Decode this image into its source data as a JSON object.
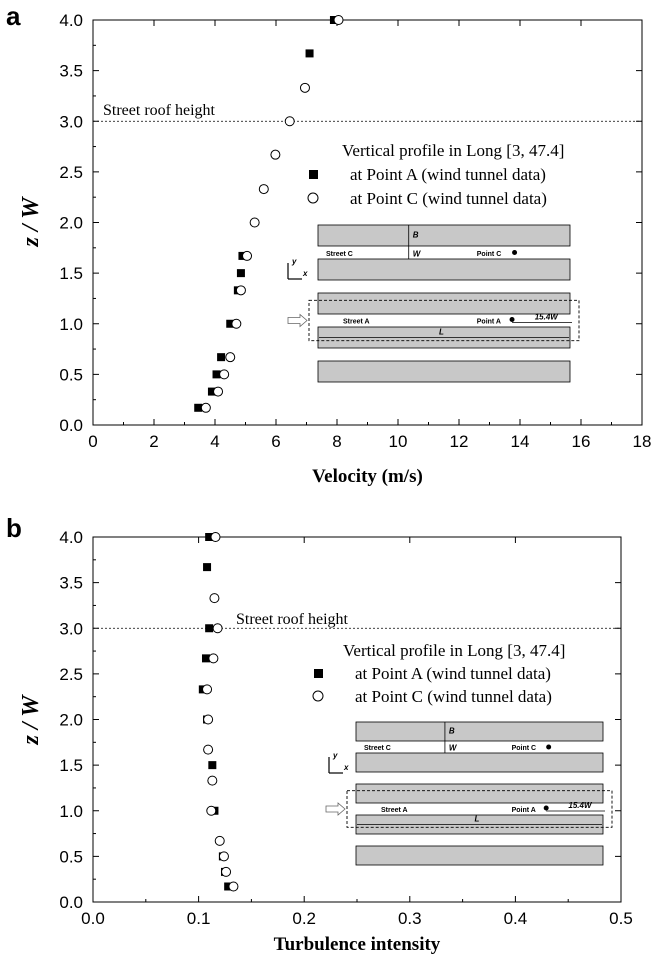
{
  "chart_data": [
    {
      "panel": "a",
      "type": "scatter",
      "xlabel": "Velocity (m/s)",
      "ylabel": "z / W",
      "xlim": [
        0,
        18
      ],
      "ylim": [
        0,
        4.0
      ],
      "xticks": [
        "0",
        "2",
        "4",
        "6",
        "8",
        "10",
        "12",
        "14",
        "16",
        "18"
      ],
      "yticks": [
        "0.0",
        "0.5",
        "1.0",
        "1.5",
        "2.0",
        "2.5",
        "3.0",
        "3.5",
        "4.0"
      ],
      "grid": false,
      "legend_title": "Vertical profile in Long [3, 47.4]",
      "legend_position": "right",
      "series": [
        {
          "name": "at Point A (wind tunnel data)",
          "marker": "filled-square",
          "points": [
            [
              3.45,
              0.17
            ],
            [
              3.9,
              0.33
            ],
            [
              4.05,
              0.5
            ],
            [
              4.2,
              0.67
            ],
            [
              4.5,
              1.0
            ],
            [
              4.75,
              1.33
            ],
            [
              4.85,
              1.5
            ],
            [
              4.9,
              1.67
            ],
            [
              7.1,
              3.67
            ],
            [
              7.9,
              4.0
            ]
          ]
        },
        {
          "name": "at Point C (wind tunnel data)",
          "marker": "open-circle",
          "points": [
            [
              3.7,
              0.17
            ],
            [
              4.1,
              0.33
            ],
            [
              4.3,
              0.5
            ],
            [
              4.5,
              0.67
            ],
            [
              4.7,
              1.0
            ],
            [
              4.85,
              1.33
            ],
            [
              5.05,
              1.67
            ],
            [
              5.3,
              2.0
            ],
            [
              5.6,
              2.33
            ],
            [
              5.98,
              2.67
            ],
            [
              6.45,
              3.0
            ],
            [
              6.95,
              3.33
            ],
            [
              8.05,
              4.0
            ]
          ]
        }
      ],
      "reference_lines": [
        {
          "y": 3.0,
          "label": "Street roof height",
          "style": "dashed"
        }
      ],
      "inset": {
        "labels": {
          "b": "B",
          "w": "W",
          "street_c": "Street C",
          "point_c": "Point C",
          "street_a": "Street A",
          "point_a": "Point A",
          "dist": "15.4W",
          "l": "L",
          "y_axis": "y",
          "x_axis": "x"
        }
      }
    },
    {
      "panel": "b",
      "type": "scatter",
      "xlabel": "Turbulence intensity",
      "ylabel": "z / W",
      "xlim": [
        0,
        0.5
      ],
      "ylim": [
        0,
        4.0
      ],
      "xticks": [
        "0.0",
        "0.1",
        "0.2",
        "0.3",
        "0.4",
        "0.5"
      ],
      "yticks": [
        "0.0",
        "0.5",
        "1.0",
        "1.5",
        "2.0",
        "2.5",
        "3.0",
        "3.5",
        "4.0"
      ],
      "grid": false,
      "legend_title": "Vertical profile in Long [3, 47.4]",
      "legend_position": "right",
      "series": [
        {
          "name": "at Point A (wind tunnel data)",
          "marker": "filled-square",
          "points": [
            [
              0.128,
              0.17
            ],
            [
              0.125,
              0.33
            ],
            [
              0.123,
              0.5
            ],
            [
              0.115,
              1.0
            ],
            [
              0.113,
              1.5
            ],
            [
              0.108,
              2.0
            ],
            [
              0.104,
              2.33
            ],
            [
              0.107,
              2.67
            ],
            [
              0.11,
              3.0
            ],
            [
              0.108,
              3.67
            ],
            [
              0.11,
              4.0
            ]
          ]
        },
        {
          "name": "at Point C (wind tunnel data)",
          "marker": "open-circle",
          "points": [
            [
              0.133,
              0.17
            ],
            [
              0.126,
              0.33
            ],
            [
              0.124,
              0.5
            ],
            [
              0.12,
              0.67
            ],
            [
              0.112,
              1.0
            ],
            [
              0.113,
              1.33
            ],
            [
              0.109,
              1.67
            ],
            [
              0.109,
              2.0
            ],
            [
              0.108,
              2.33
            ],
            [
              0.114,
              2.67
            ],
            [
              0.118,
              3.0
            ],
            [
              0.115,
              3.33
            ],
            [
              0.116,
              4.0
            ]
          ]
        }
      ],
      "reference_lines": [
        {
          "y": 3.0,
          "label": "Street roof height",
          "style": "dashed"
        }
      ],
      "inset": {
        "labels": {
          "b": "B",
          "w": "W",
          "street_c": "Street C",
          "point_c": "Point C",
          "street_a": "Street A",
          "point_a": "Point A",
          "dist": "15.4W",
          "l": "L",
          "y_axis": "y",
          "x_axis": "x"
        }
      }
    }
  ],
  "colors": {
    "axis": "#000000",
    "building_fill": "#c8c8c8",
    "marker": "#000000"
  }
}
